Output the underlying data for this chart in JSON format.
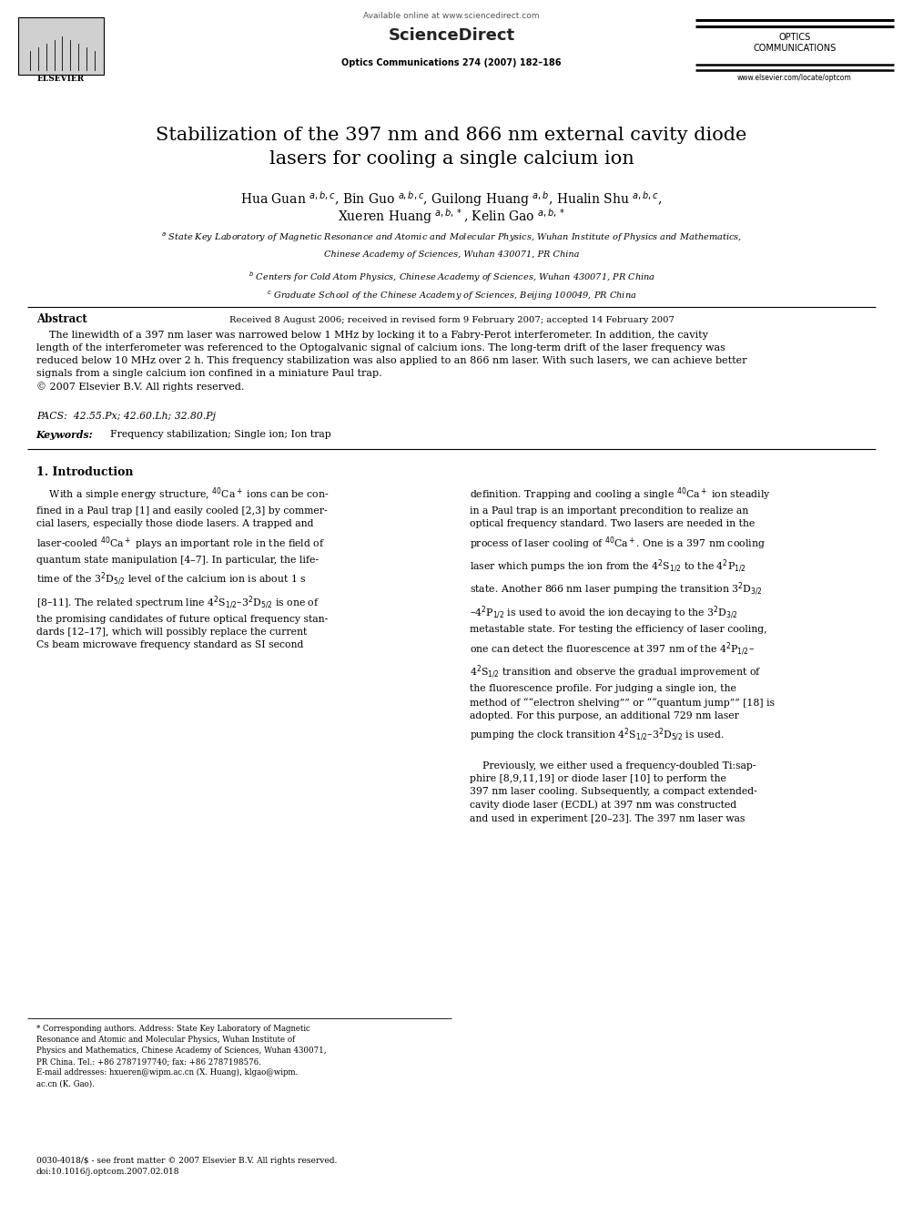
{
  "background_color": "#ffffff",
  "page_width": 9.92,
  "page_height": 13.23,
  "header": {
    "available_online": "Available online at www.sciencedirect.com",
    "journal_name": "ScienceDirect",
    "optics_comm": "OPTICS\nCOMMUNICATIONS",
    "journal_ref": "Optics Communications 274 (2007) 182–186",
    "website": "www.elsevier.com/locate/optcom",
    "elsevier": "ELSEVIER"
  },
  "title": "Stabilization of the 397 nm and 866 nm external cavity diode\nlasers for cooling a single calcium ion",
  "authors_line1": "Hua Guan $^{a,b,c}$, Bin Guo $^{a,b,c}$, Guilong Huang $^{a,b}$, Hualin Shu $^{a,b,c}$,",
  "authors_line2": "Xueren Huang $^{a,b,*}$, Kelin Gao $^{a,b,*}$",
  "affiliations": [
    "$^a$ State Key Laboratory of Magnetic Resonance and Atomic and Molecular Physics, Wuhan Institute of Physics and Mathematics,",
    "Chinese Academy of Sciences, Wuhan 430071, PR China",
    "$^b$ Centers for Cold Atom Physics, Chinese Academy of Sciences, Wuhan 430071, PR China",
    "$^c$ Graduate School of the Chinese Academy of Sciences, Beijing 100049, PR China"
  ],
  "received": "Received 8 August 2006; received in revised form 9 February 2007; accepted 14 February 2007",
  "abstract_title": "Abstract",
  "abstract_body": "    The linewidth of a 397 nm laser was narrowed below 1 MHz by locking it to a Fabry-Perot interferometer. In addition, the cavity\nlength of the interferometer was referenced to the Optogalvanic signal of calcium ions. The long-term drift of the laser frequency was\nreduced below 10 MHz over 2 h. This frequency stabilization was also applied to an 866 nm laser. With such lasers, we can achieve better\nsignals from a single calcium ion confined in a miniature Paul trap.\n© 2007 Elsevier B.V. All rights reserved.",
  "pacs": "PACS:  42.55.Px; 42.60.Lh; 32.80.Pj",
  "keywords_label": "Keywords:",
  "keywords_body": "  Frequency stabilization; Single ion; Ion trap",
  "section1_title": "1. Introduction",
  "col1_text": "    With a simple energy structure, $^{40}$Ca$^+$ ions can be con-\nfined in a Paul trap [1] and easily cooled [2,3] by commer-\ncial lasers, especially those diode lasers. A trapped and\nlaser-cooled $^{40}$Ca$^+$ plays an important role in the field of\nquantum state manipulation [4–7]. In particular, the life-\ntime of the 3$^2$D$_{5/2}$ level of the calcium ion is about 1 s\n[8–11]. The related spectrum line 4$^2$S$_{1/2}$–3$^2$D$_{5/2}$ is one of\nthe promising candidates of future optical frequency stan-\ndards [12–17], which will possibly replace the current\nCs beam microwave frequency standard as SI second",
  "col2_text": "definition. Trapping and cooling a single $^{40}$Ca$^+$ ion steadily\nin a Paul trap is an important precondition to realize an\noptical frequency standard. Two lasers are needed in the\nprocess of laser cooling of $^{40}$Ca$^+$. One is a 397 nm cooling\nlaser which pumps the ion from the 4$^2$S$_{1/2}$ to the 4$^2$P$_{1/2}$\nstate. Another 866 nm laser pumping the transition 3$^2$D$_{3/2}$\n–4$^2$P$_{1/2}$ is used to avoid the ion decaying to the 3$^2$D$_{3/2}$\nmetastable state. For testing the efficiency of laser cooling,\none can detect the fluorescence at 397 nm of the 4$^2$P$_{1/2}$–\n4$^2$S$_{1/2}$ transition and observe the gradual improvement of\nthe fluorescence profile. For judging a single ion, the\nmethod of ““electron shelving”” or ““quantum jump”” [18] is\nadopted. For this purpose, an additional 729 nm laser\npumping the clock transition 4$^2$S$_{1/2}$–3$^2$D$_{5/2}$ is used.",
  "col2_para2": "    Previously, we either used a frequency-doubled Ti:sap-\nphire [8,9,11,19] or diode laser [10] to perform the\n397 nm laser cooling. Subsequently, a compact extended-\ncavity diode laser (ECDL) at 397 nm was constructed\nand used in experiment [20–23]. The 397 nm laser was",
  "footnote": "* Corresponding authors. Address: State Key Laboratory of Magnetic\nResonance and Atomic and Molecular Physics, Wuhan Institute of\nPhysics and Mathematics, Chinese Academy of Sciences, Wuhan 430071,\nPR China. Tel.: +86 2787197740; fax: +86 2787198576.\nE-mail addresses: hxueren@wipm.ac.cn (X. Huang), klgao@wipm.\nac.cn (K. Gao).",
  "bottom_text": "0030-4018/$ - see front matter © 2007 Elsevier B.V. All rights reserved.\ndoi:10.1016/j.optcom.2007.02.018"
}
